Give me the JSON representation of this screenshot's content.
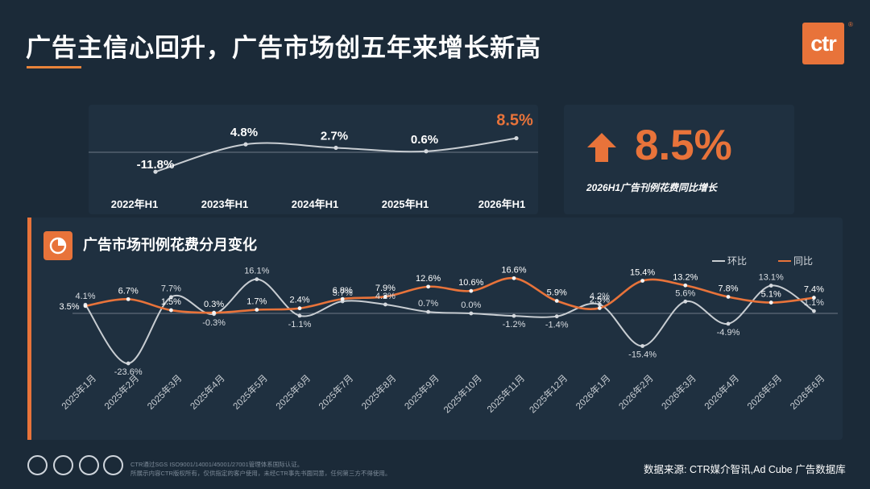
{
  "header": {
    "title": "广告主信心回升，广告市场创五年来增长新高",
    "logo_text": "ctr",
    "logo_mark": "®"
  },
  "kpi": {
    "value": "8.5%",
    "caption": "2026H1广告刊例花费同比增长",
    "icon": "arrow-up-icon"
  },
  "section": {
    "title": "广告市场刊例花费分月变化",
    "icon": "pie-chart-icon"
  },
  "footer": {
    "cert_note_1": "CTR通过SGS ISO9001/14001/45001/27001管理体系国际认证。",
    "cert_note_2": "所展示内容CTR版权所有，仅供指定的客户使用，未经CTR事先书面同意，任何第三方不得使用。",
    "source": "数据来源: CTR媒介智讯,Ad Cube 广告数据库"
  },
  "colors": {
    "accent": "#e8733a",
    "background": "#1b2a38",
    "panel": "#1f3040",
    "mom_line": "#c8cdd2",
    "yoy_line": "#e8733a"
  },
  "chart_data": [
    {
      "type": "line",
      "categories": [
        "2022年H1",
        "2023年H1",
        "2024年H1",
        "2025年H1",
        "2026年H1"
      ],
      "values": [
        -11.8,
        4.8,
        2.7,
        0.6,
        8.5
      ],
      "value_labels": [
        "-11.8%",
        "4.8%",
        "2.7%",
        "0.6%",
        "8.5%"
      ],
      "highlight_index": 4
    },
    {
      "type": "line",
      "title": "广告市场刊例花费分月变化",
      "categories": [
        "2025年1月",
        "2025年2月",
        "2025年3月",
        "2025年4月",
        "2025年5月",
        "2025年6月",
        "2025年7月",
        "2025年8月",
        "2025年9月",
        "2025年10月",
        "2025年11月",
        "2025年12月",
        "2026年1月",
        "2026年2月",
        "2026年3月",
        "2026年4月",
        "2026年5月",
        "2026年6月"
      ],
      "legend": "top-right",
      "series": [
        {
          "name": "环比",
          "values": [
            4.1,
            -23.6,
            7.7,
            -0.3,
            16.1,
            -1.1,
            5.7,
            4.2,
            0.7,
            0.0,
            -1.2,
            -1.4,
            4.2,
            -15.4,
            5.6,
            -4.9,
            13.1,
            1.1
          ],
          "labels": [
            "4.1%",
            "-23.6%",
            "7.7%",
            "-0.3%",
            "16.1%",
            "-1.1%",
            "5.7%",
            "4.2%",
            "0.7%",
            "0.0%",
            "-1.2%",
            "-1.4%",
            "4.2%",
            "-15.4%",
            "5.6%",
            "-4.9%",
            "13.1%",
            "1.1%"
          ]
        },
        {
          "name": "同比",
          "values": [
            3.5,
            6.7,
            1.5,
            0.3,
            1.7,
            2.4,
            6.8,
            7.9,
            12.6,
            10.6,
            16.6,
            5.9,
            2.5,
            15.4,
            13.2,
            7.8,
            5.1,
            7.4
          ],
          "labels": [
            "3.5%",
            "6.7%",
            "1.5%",
            "0.3%",
            "1.7%",
            "2.4%",
            "6.8%",
            "7.9%",
            "12.6%",
            "10.6%",
            "16.6%",
            "5.9%",
            "2.5%",
            "15.4%",
            "13.2%",
            "7.8%",
            "5.1%",
            "7.4%"
          ]
        }
      ]
    }
  ]
}
